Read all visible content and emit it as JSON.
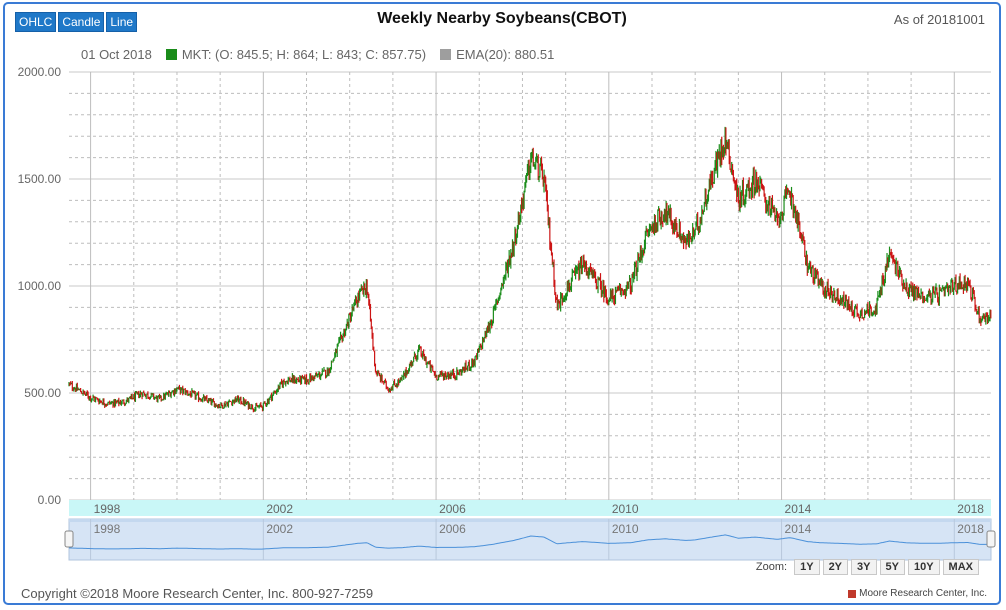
{
  "toolbar": {
    "buttons": [
      "OHLC",
      "Candle",
      "Line"
    ]
  },
  "title": "Weekly Nearby Soybeans(CBOT)",
  "as_of": "As of 20181001",
  "legend": {
    "date": "01 Oct 2018",
    "mkt": "MKT: (O: 845.5; H: 864; L: 843; C: 857.75)",
    "ema": "EMA(20): 880.51",
    "colors": {
      "mkt": "#1a8c1a",
      "ema": "#9e9e9e"
    }
  },
  "chart_data": {
    "type": "line",
    "subtype": "ohlc-weekly",
    "title": "Weekly Nearby Soybeans(CBOT)",
    "x_ticks": [
      "1998",
      "2002",
      "2006",
      "2010",
      "2014",
      "2018"
    ],
    "y_ticks": [
      "0.00",
      "500.00",
      "1000.00",
      "1500.00",
      "2000.00"
    ],
    "ylim": [
      0,
      2000
    ],
    "xlim": [
      1997.5,
      2018.85
    ],
    "grid": true,
    "colors": {
      "up": "#1a8c1a",
      "down": "#cc1414"
    },
    "series": [
      {
        "name": "MKT",
        "x": [
          1997.5,
          1998.0,
          1998.4,
          1998.8,
          1999.2,
          1999.6,
          2000.0,
          2000.5,
          2001.0,
          2001.4,
          2001.8,
          2002.0,
          2002.5,
          2003.0,
          2003.5,
          2003.9,
          2004.2,
          2004.4,
          2004.6,
          2004.9,
          2005.2,
          2005.6,
          2006.0,
          2006.5,
          2006.9,
          2007.3,
          2007.8,
          2008.0,
          2008.2,
          2008.5,
          2008.8,
          2009.0,
          2009.4,
          2009.8,
          2010.0,
          2010.5,
          2010.9,
          2011.3,
          2011.8,
          2012.0,
          2012.3,
          2012.7,
          2013.0,
          2013.4,
          2013.9,
          2014.2,
          2014.6,
          2014.9,
          2015.3,
          2015.8,
          2016.2,
          2016.5,
          2016.9,
          2017.3,
          2017.7,
          2018.0,
          2018.3,
          2018.6,
          2018.85
        ],
        "values": [
          540,
          480,
          450,
          460,
          500,
          470,
          520,
          480,
          440,
          470,
          430,
          440,
          560,
          560,
          600,
          800,
          950,
          1000,
          600,
          520,
          560,
          700,
          580,
          590,
          650,
          850,
          1200,
          1400,
          1600,
          1500,
          900,
          980,
          1100,
          1000,
          940,
          1000,
          1250,
          1350,
          1200,
          1250,
          1450,
          1700,
          1400,
          1500,
          1300,
          1450,
          1100,
          1000,
          950,
          870,
          900,
          1150,
          990,
          950,
          960,
          1000,
          1020,
          850,
          860
        ]
      },
      {
        "name": "EMA(20)",
        "x": [
          1997.5,
          1999.0,
          2001.0,
          2002.5,
          2004.0,
          2004.5,
          2005.5,
          2007.0,
          2008.3,
          2009.0,
          2010.5,
          2011.5,
          2012.8,
          2013.8,
          2014.5,
          2015.5,
          2016.5,
          2017.5,
          2018.85
        ],
        "values": [
          500,
          470,
          460,
          500,
          700,
          820,
          600,
          640,
          1350,
          1050,
          1050,
          1250,
          1500,
          1400,
          1250,
          950,
          1000,
          970,
          880
        ]
      }
    ]
  },
  "navigator": {
    "ticks": [
      "1998",
      "2002",
      "2006",
      "2010",
      "2014",
      "2018"
    ]
  },
  "zoom": {
    "label": "Zoom:",
    "options": [
      "1Y",
      "2Y",
      "3Y",
      "5Y",
      "10Y",
      "MAX"
    ]
  },
  "footer": {
    "copyright": "Copyright ©2018 Moore Research Center, Inc. 800-927-7259",
    "brand": "Moore Research Center, Inc."
  }
}
